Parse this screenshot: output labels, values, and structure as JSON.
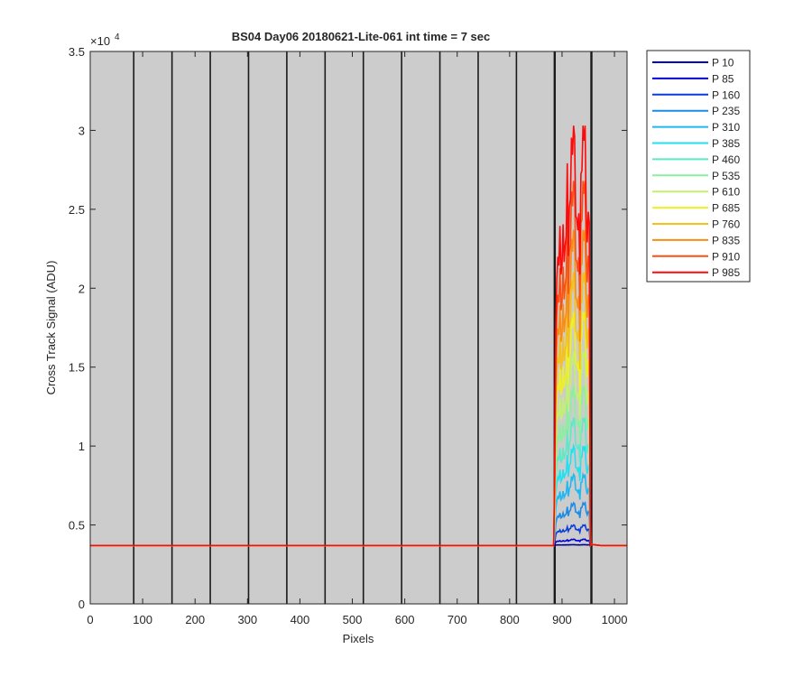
{
  "chart_data": {
    "type": "line",
    "title": "BS04 Day06 20180621-Lite-061 int time = 7 sec",
    "xlabel": "Pixels",
    "ylabel": "Cross Track Signal (ADU)",
    "xlim": [
      0,
      1024
    ],
    "ylim": [
      0,
      35000
    ],
    "y_exponent_label": "×10",
    "y_exponent_power": "4",
    "x_ticks": [
      0,
      100,
      200,
      300,
      400,
      500,
      600,
      700,
      800,
      900,
      1000
    ],
    "x_tick_labels": [
      "0",
      "100",
      "200",
      "300",
      "400",
      "500",
      "600",
      "700",
      "800",
      "900",
      "1000"
    ],
    "y_ticks": [
      0,
      5000,
      10000,
      15000,
      20000,
      25000,
      30000,
      35000
    ],
    "y_tick_labels": [
      "0",
      "0.5",
      "1",
      "1.5",
      "2",
      "2.5",
      "3",
      "3.5"
    ],
    "background_color": "#cccccc",
    "vertical_markers": [
      83,
      156,
      229,
      302,
      375,
      448,
      521,
      594,
      667,
      740,
      813,
      886,
      956
    ],
    "baseline": 3700,
    "signal_region": [
      886,
      953
    ],
    "peak_pixel": 921,
    "legend_position": "outside-right",
    "series": [
      {
        "name": "P 10",
        "color": "#00008f",
        "peak": 3750
      },
      {
        "name": "P 85",
        "color": "#0000d6",
        "peak": 4100
      },
      {
        "name": "P 160",
        "color": "#0a3ddb",
        "peak": 5000
      },
      {
        "name": "P 235",
        "color": "#1a8ce6",
        "peak": 6400
      },
      {
        "name": "P 310",
        "color": "#1fb8f0",
        "peak": 8200
      },
      {
        "name": "P 385",
        "color": "#22e0f0",
        "peak": 10000
      },
      {
        "name": "P 460",
        "color": "#5fe8c8",
        "peak": 11800
      },
      {
        "name": "P 535",
        "color": "#8af0a0",
        "peak": 13800
      },
      {
        "name": "P 610",
        "color": "#c4f070",
        "peak": 16000
      },
      {
        "name": "P 685",
        "color": "#f0f020",
        "peak": 18500
      },
      {
        "name": "P 760",
        "color": "#f5c018",
        "peak": 21000
      },
      {
        "name": "P 835",
        "color": "#fa8c14",
        "peak": 23700
      },
      {
        "name": "P 910",
        "color": "#fa5014",
        "peak": 26800
      },
      {
        "name": "P 985",
        "color": "#ff0a0a",
        "peak": 30300
      }
    ]
  }
}
